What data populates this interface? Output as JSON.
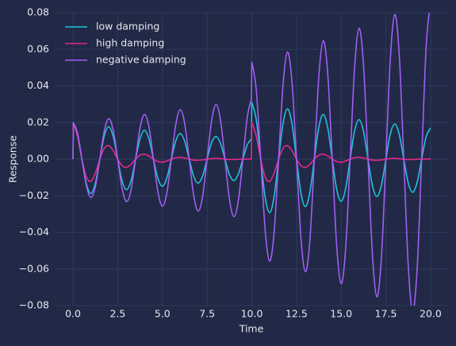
{
  "chart_data": {
    "type": "line",
    "xlabel": "Time",
    "ylabel": "Response",
    "xlim": [
      -1,
      21
    ],
    "ylim": [
      -0.08,
      0.08
    ],
    "xticks": [
      {
        "value": 0,
        "label": "0.0"
      },
      {
        "value": 2.5,
        "label": "2.5"
      },
      {
        "value": 5,
        "label": "5.0"
      },
      {
        "value": 7.5,
        "label": "7.5"
      },
      {
        "value": 10,
        "label": "10.0"
      },
      {
        "value": 12.5,
        "label": "12.5"
      },
      {
        "value": 15,
        "label": "15.0"
      },
      {
        "value": 17.5,
        "label": "17.5"
      },
      {
        "value": 20,
        "label": "20.0"
      }
    ],
    "yticks": [
      {
        "value": -0.08,
        "label": "−0.08"
      },
      {
        "value": -0.06,
        "label": "−0.06"
      },
      {
        "value": -0.04,
        "label": "−0.04"
      },
      {
        "value": -0.02,
        "label": "−0.02"
      },
      {
        "value": 0,
        "label": "0.00"
      },
      {
        "value": 0.02,
        "label": "0.02"
      },
      {
        "value": 0.04,
        "label": "0.04"
      },
      {
        "value": 0.06,
        "label": "0.06"
      },
      {
        "value": 0.08,
        "label": "0.08"
      }
    ],
    "grid": true,
    "legend": "upper left",
    "x": [
      0,
      0.02,
      0.25,
      0.5,
      0.75,
      1,
      1.25,
      1.5,
      1.75,
      2,
      2.25,
      2.5,
      2.75,
      3,
      3.25,
      3.5,
      3.75,
      4,
      4.25,
      4.5,
      4.75,
      5,
      5.25,
      5.5,
      5.75,
      6,
      6.25,
      6.5,
      6.75,
      7,
      7.25,
      7.5,
      7.75,
      8,
      8.25,
      8.5,
      8.75,
      9,
      9.25,
      9.5,
      9.75,
      9.98,
      10,
      10.25,
      10.5,
      10.75,
      11,
      11.25,
      11.5,
      11.75,
      12,
      12.25,
      12.5,
      12.75,
      13,
      13.25,
      13.5,
      13.75,
      14,
      14.25,
      14.5,
      14.75,
      15,
      15.25,
      15.5,
      15.75,
      16,
      16.25,
      16.5,
      16.75,
      17,
      17.25,
      17.5,
      17.75,
      18,
      18.25,
      18.5,
      18.75,
      19,
      19.25,
      19.5,
      19.75,
      20
    ],
    "series": [
      {
        "name": "low damping",
        "color": "#1fc4d8",
        "values": [
          0,
          0.0199,
          0.0139,
          0,
          -0.0135,
          -0.0188,
          -0.0131,
          0,
          0.0127,
          0.0177,
          0.0124,
          0,
          -0.012,
          -0.0167,
          -0.0116,
          0,
          0.0113,
          0.0157,
          0.011,
          0,
          -0.0106,
          -0.0148,
          -0.0103,
          0,
          0.01,
          0.014,
          0.0097,
          0,
          -0.0094,
          -0.0131,
          -0.0092,
          0,
          0.0089,
          0.0124,
          0.0086,
          0,
          -0.0084,
          -0.0117,
          -0.0081,
          0,
          0.0079,
          0.011,
          0.031,
          0.0216,
          0,
          -0.0209,
          -0.0292,
          -0.0203,
          0,
          0.0197,
          0.0275,
          0.0191,
          0,
          -0.0186,
          -0.0259,
          -0.018,
          0,
          0.0175,
          0.0244,
          0.017,
          0,
          -0.0165,
          -0.023,
          -0.016,
          0,
          0.0155,
          0.0216,
          0.0151,
          0,
          -0.0146,
          -0.0204,
          -0.0142,
          0,
          0.0138,
          0.0192,
          0.0134,
          0,
          -0.013,
          -0.0181,
          -0.0126,
          0,
          0.0122,
          0.017
        ]
      },
      {
        "name": "high damping",
        "color": "#e8288c",
        "values": [
          0,
          0.0198,
          0.0125,
          0,
          -0.0097,
          -0.0121,
          -0.0076,
          0,
          0.0059,
          0.0074,
          0.0046,
          0,
          -0.0036,
          -0.0045,
          -0.0028,
          0,
          0.0022,
          0.0027,
          0.0017,
          0,
          -0.0013,
          -0.0016,
          -0.001,
          0,
          0.0008,
          0.001,
          0.0006,
          0,
          -0.0005,
          -0.0006,
          -0.0004,
          0,
          0.0003,
          0.0004,
          0.0002,
          0,
          -0.0002,
          -0.0002,
          -0.0001,
          0,
          0.0001,
          0.0001,
          0.0201,
          0.0126,
          0,
          -0.0098,
          -0.0122,
          -0.0076,
          0,
          0.0059,
          0.0074,
          0.0046,
          0,
          -0.0036,
          -0.0045,
          -0.0028,
          0,
          0.0022,
          0.0027,
          0.0017,
          0,
          -0.0013,
          -0.0017,
          -0.001,
          0,
          0.0008,
          0.001,
          0.0006,
          0,
          -0.0005,
          -0.0006,
          -0.0004,
          0,
          0.0003,
          0.0004,
          0.0002,
          0,
          -0.0002,
          -0.0002,
          -0.0001,
          0,
          0.0001,
          0.0001
        ]
      },
      {
        "name": "negative damping",
        "color": "#a25ef3",
        "values": [
          0,
          0.02,
          0.0143,
          0,
          -0.0147,
          -0.021,
          -0.0151,
          0,
          0.0154,
          0.0221,
          0.0158,
          0,
          -0.0162,
          -0.0232,
          -0.0166,
          0,
          0.0171,
          0.0244,
          0.0175,
          0,
          -0.0179,
          -0.0257,
          -0.0184,
          0,
          0.0189,
          0.027,
          0.0193,
          0,
          -0.0198,
          -0.0284,
          -0.0203,
          0,
          0.0208,
          0.0298,
          0.0214,
          0,
          -0.0219,
          -0.0314,
          -0.0225,
          0,
          0.023,
          0.033,
          0.053,
          0.0379,
          0,
          -0.0389,
          -0.0557,
          -0.0399,
          0,
          0.0409,
          0.0585,
          0.0419,
          0,
          -0.043,
          -0.0615,
          -0.0441,
          0,
          0.0452,
          0.0647,
          0.0463,
          0,
          -0.0475,
          -0.068,
          -0.0487,
          0,
          0.0499,
          0.0715,
          0.0512,
          0,
          -0.0525,
          -0.0752,
          -0.0538,
          0,
          0.0552,
          0.079,
          0.0566,
          0,
          -0.058,
          -0.0831,
          -0.0595,
          0,
          0.061,
          0.0873
        ]
      }
    ]
  }
}
